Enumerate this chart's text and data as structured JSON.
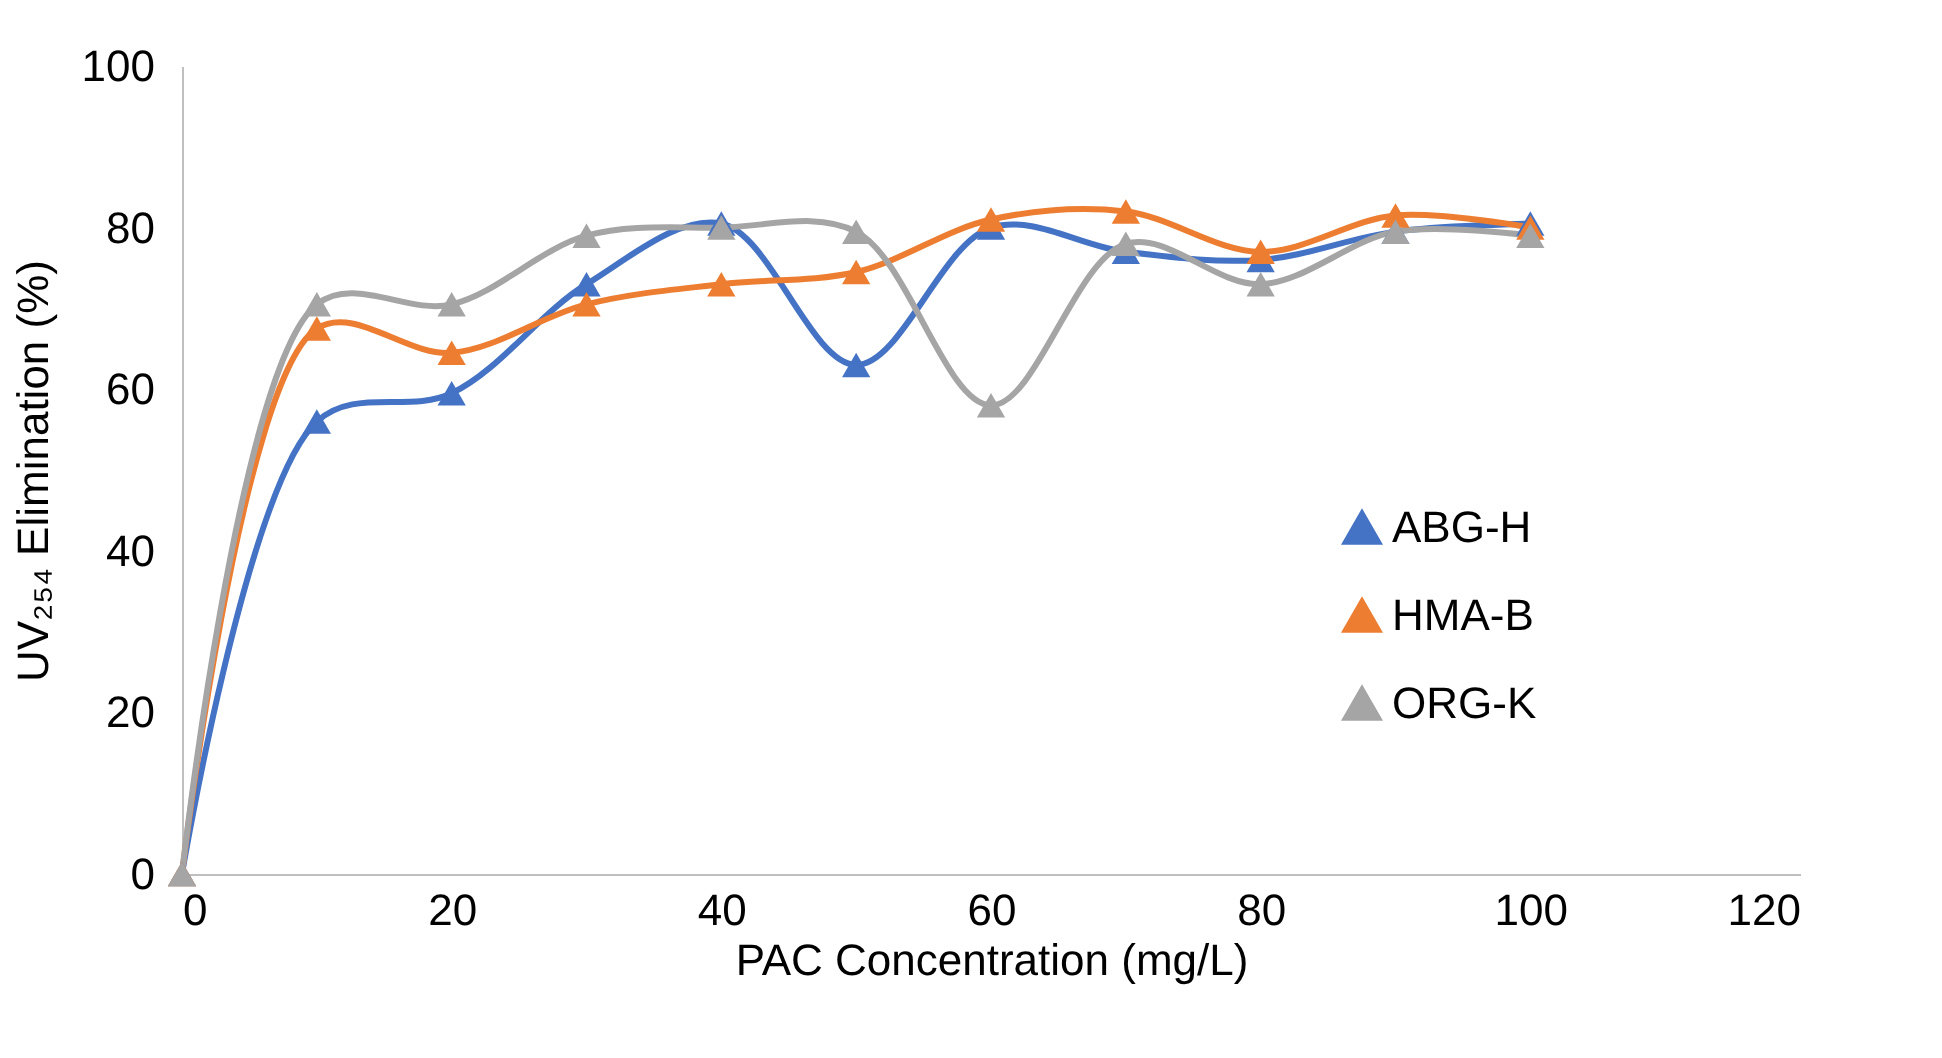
{
  "chart_data": {
    "type": "line",
    "xlabel": "PAC Concentration (mg/L)",
    "ylabel": "UV₂₅₄ Elimination (%)",
    "x": [
      0,
      10,
      20,
      30,
      40,
      50,
      60,
      70,
      80,
      90,
      100
    ],
    "series": [
      {
        "name": "ABG-H",
        "color": "#4472c4",
        "values": [
          0,
          56,
          59.5,
          73,
          80.5,
          63,
          80,
          77,
          76,
          79.5,
          80.5
        ]
      },
      {
        "name": "HMA-B",
        "color": "#ed7d31",
        "values": [
          0,
          67.5,
          64.5,
          70.5,
          73,
          74.5,
          81,
          82,
          77,
          81.5,
          80
        ]
      },
      {
        "name": "ORG-K",
        "color": "#a5a5a5",
        "values": [
          0,
          70.5,
          70.5,
          79,
          80,
          79.5,
          58,
          78,
          73,
          79.5,
          79
        ]
      }
    ],
    "xlim": [
      0,
      120
    ],
    "xticks": [
      0,
      20,
      40,
      60,
      80,
      100,
      120
    ],
    "ylim": [
      0,
      100
    ],
    "yticks": [
      0,
      20,
      40,
      60,
      80,
      100
    ],
    "grid": false,
    "legend": "right",
    "marker": "triangle",
    "line_style": "solid"
  }
}
